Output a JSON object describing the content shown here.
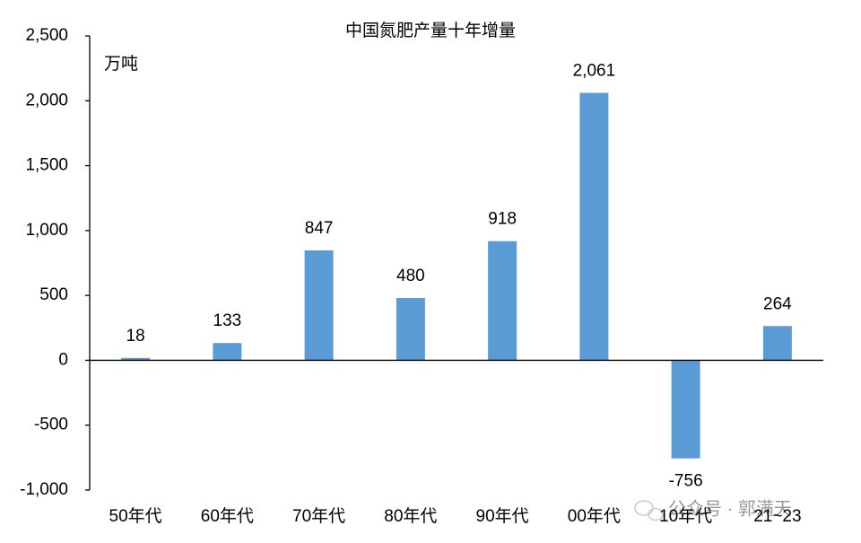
{
  "chart_data": {
    "type": "bar",
    "title": "中国氮肥产量十年增量",
    "unit_label": "万吨",
    "categories": [
      "50年代",
      "60年代",
      "70年代",
      "80年代",
      "90年代",
      "00年代",
      "10年代",
      "21~23"
    ],
    "values": [
      18,
      133,
      847,
      480,
      918,
      2061,
      -756,
      264
    ],
    "value_labels": [
      "18",
      "133",
      "847",
      "480",
      "918",
      "2,061",
      "-756",
      "264"
    ],
    "color": "#5b9bd5",
    "ylim": [
      -1000,
      2500
    ],
    "yticks": [
      {
        "value": -1000,
        "label": "-1,000"
      },
      -500,
      0,
      500,
      {
        "value": 1000,
        "label": "1,000"
      },
      {
        "value": 1500,
        "label": "1,500"
      },
      {
        "value": 2000,
        "label": "2,000"
      },
      {
        "value": 2500,
        "label": "2,500"
      }
    ],
    "grid": false,
    "watermark": "公众号 · 郭满天"
  }
}
